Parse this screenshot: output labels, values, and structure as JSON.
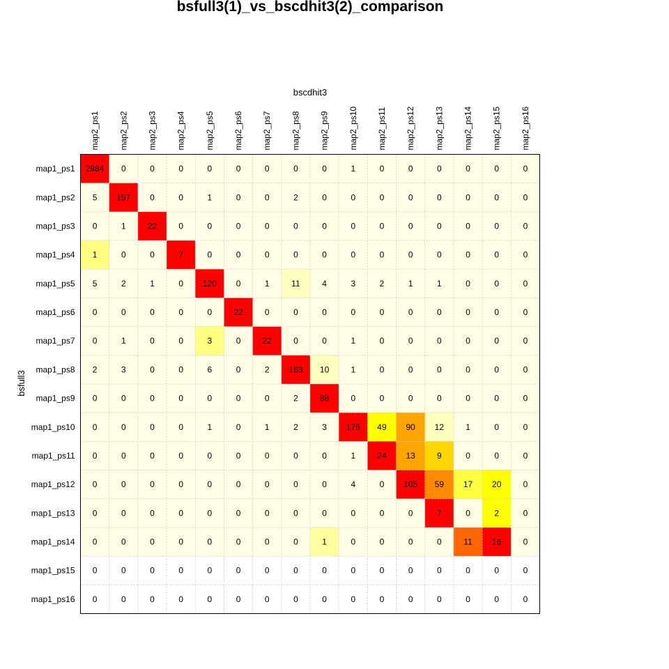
{
  "chart_data": {
    "type": "heatmap",
    "title": "bsfull3(1)_vs_bscdhit3(2)_comparison",
    "xlabel": "bscdhit3",
    "ylabel": "bsfull3",
    "x_categories": [
      "map2_ps1",
      "map2_ps2",
      "map2_ps3",
      "map2_ps4",
      "map2_ps5",
      "map2_ps6",
      "map2_ps7",
      "map2_ps8",
      "map2_ps9",
      "map2_ps10",
      "map2_ps11",
      "map2_ps12",
      "map2_ps13",
      "map2_ps14",
      "map2_ps15",
      "map2_ps16"
    ],
    "y_categories": [
      "map1_ps1",
      "map1_ps2",
      "map1_ps3",
      "map1_ps4",
      "map1_ps5",
      "map1_ps6",
      "map1_ps7",
      "map1_ps8",
      "map1_ps9",
      "map1_ps10",
      "map1_ps11",
      "map1_ps12",
      "map1_ps13",
      "map1_ps14",
      "map1_ps15",
      "map1_ps16"
    ],
    "values": [
      [
        2984,
        0,
        0,
        0,
        0,
        0,
        0,
        0,
        0,
        1,
        0,
        0,
        0,
        0,
        0,
        0
      ],
      [
        5,
        157,
        0,
        0,
        1,
        0,
        0,
        2,
        0,
        0,
        0,
        0,
        0,
        0,
        0,
        0
      ],
      [
        0,
        1,
        22,
        0,
        0,
        0,
        0,
        0,
        0,
        0,
        0,
        0,
        0,
        0,
        0,
        0
      ],
      [
        1,
        0,
        0,
        7,
        0,
        0,
        0,
        0,
        0,
        0,
        0,
        0,
        0,
        0,
        0,
        0
      ],
      [
        5,
        2,
        1,
        0,
        120,
        0,
        1,
        11,
        4,
        3,
        2,
        1,
        1,
        0,
        0,
        0
      ],
      [
        0,
        0,
        0,
        0,
        0,
        22,
        0,
        0,
        0,
        0,
        0,
        0,
        0,
        0,
        0,
        0
      ],
      [
        0,
        1,
        0,
        0,
        3,
        0,
        22,
        0,
        0,
        1,
        0,
        0,
        0,
        0,
        0,
        0
      ],
      [
        2,
        3,
        0,
        0,
        6,
        0,
        2,
        163,
        10,
        1,
        0,
        0,
        0,
        0,
        0,
        0
      ],
      [
        0,
        0,
        0,
        0,
        0,
        0,
        0,
        2,
        88,
        0,
        0,
        0,
        0,
        0,
        0,
        0
      ],
      [
        0,
        0,
        0,
        0,
        1,
        0,
        1,
        2,
        3,
        175,
        49,
        90,
        12,
        1,
        0,
        0
      ],
      [
        0,
        0,
        0,
        0,
        0,
        0,
        0,
        0,
        0,
        1,
        24,
        13,
        9,
        0,
        0,
        0
      ],
      [
        0,
        0,
        0,
        0,
        0,
        0,
        0,
        0,
        0,
        4,
        0,
        105,
        59,
        17,
        20,
        0
      ],
      [
        0,
        0,
        0,
        0,
        0,
        0,
        0,
        0,
        0,
        0,
        0,
        0,
        7,
        0,
        2,
        0
      ],
      [
        0,
        0,
        0,
        0,
        0,
        0,
        0,
        0,
        1,
        0,
        0,
        0,
        0,
        11,
        16,
        0
      ],
      [
        0,
        0,
        0,
        0,
        0,
        0,
        0,
        0,
        0,
        0,
        0,
        0,
        0,
        0,
        0,
        0
      ],
      [
        0,
        0,
        0,
        0,
        0,
        0,
        0,
        0,
        0,
        0,
        0,
        0,
        0,
        0,
        0,
        0
      ]
    ],
    "cell_colors": [
      [
        "#ff0000",
        "#fffde6",
        "#fffde6",
        "#fffde6",
        "#fffde6",
        "#fffde6",
        "#fffde6",
        "#fffde6",
        "#fffde6",
        "#fffde6",
        "#fffde6",
        "#fffde6",
        "#fffde6",
        "#fffde6",
        "#fffde6",
        "#fffde6"
      ],
      [
        "#fffde6",
        "#ff0000",
        "#fffde6",
        "#fffde6",
        "#fffde6",
        "#fffde6",
        "#fffde6",
        "#fffde6",
        "#fffde6",
        "#fffde6",
        "#fffde6",
        "#fffde6",
        "#fffde6",
        "#fffde6",
        "#fffde6",
        "#fffde6"
      ],
      [
        "#fffde6",
        "#fffde6",
        "#ff0000",
        "#fffde6",
        "#fffde6",
        "#fffde6",
        "#fffde6",
        "#fffde6",
        "#fffde6",
        "#fffde6",
        "#fffde6",
        "#fffde6",
        "#fffde6",
        "#fffde6",
        "#fffde6",
        "#fffde6"
      ],
      [
        "#ffff80",
        "#fffde6",
        "#fffde6",
        "#ff0000",
        "#fffde6",
        "#fffde6",
        "#fffde6",
        "#fffde6",
        "#fffde6",
        "#fffde6",
        "#fffde6",
        "#fffde6",
        "#fffde6",
        "#fffde6",
        "#fffde6",
        "#fffde6"
      ],
      [
        "#fffde6",
        "#fffde6",
        "#fffde6",
        "#fffde6",
        "#ff0000",
        "#fffde6",
        "#fffde6",
        "#ffffc0",
        "#fffde6",
        "#fffde6",
        "#fffde6",
        "#fffde6",
        "#fffde6",
        "#fffde6",
        "#fffde6",
        "#fffde6"
      ],
      [
        "#fffde6",
        "#fffde6",
        "#fffde6",
        "#fffde6",
        "#fffde6",
        "#ff0000",
        "#fffde6",
        "#fffde6",
        "#fffde6",
        "#fffde6",
        "#fffde6",
        "#fffde6",
        "#fffde6",
        "#fffde6",
        "#fffde6",
        "#fffde6"
      ],
      [
        "#fffde6",
        "#fffde6",
        "#fffde6",
        "#fffde6",
        "#ffff80",
        "#fffde6",
        "#ff0000",
        "#fffde6",
        "#fffde6",
        "#fffde6",
        "#fffde6",
        "#fffde6",
        "#fffde6",
        "#fffde6",
        "#fffde6",
        "#fffde6"
      ],
      [
        "#fffde6",
        "#fffde6",
        "#fffde6",
        "#fffde6",
        "#fffde6",
        "#fffde6",
        "#fffde6",
        "#ff0000",
        "#ffffc0",
        "#fffde6",
        "#fffde6",
        "#fffde6",
        "#fffde6",
        "#fffde6",
        "#fffde6",
        "#fffde6"
      ],
      [
        "#fffde6",
        "#fffde6",
        "#fffde6",
        "#fffde6",
        "#fffde6",
        "#fffde6",
        "#fffde6",
        "#fffde6",
        "#ff0000",
        "#fffde6",
        "#fffde6",
        "#fffde6",
        "#fffde6",
        "#fffde6",
        "#fffde6",
        "#fffde6"
      ],
      [
        "#fffde6",
        "#fffde6",
        "#fffde6",
        "#fffde6",
        "#fffde6",
        "#fffde6",
        "#fffde6",
        "#fffde6",
        "#fffde6",
        "#ff0000",
        "#ffff00",
        "#ffa500",
        "#ffffc0",
        "#fffde6",
        "#fffde6",
        "#fffde6"
      ],
      [
        "#fffde6",
        "#fffde6",
        "#fffde6",
        "#fffde6",
        "#fffde6",
        "#fffde6",
        "#fffde6",
        "#fffde6",
        "#fffde6",
        "#fffde6",
        "#ff0000",
        "#ffa500",
        "#ffd700",
        "#fffde6",
        "#fffde6",
        "#fffde6"
      ],
      [
        "#fffde6",
        "#fffde6",
        "#fffde6",
        "#fffde6",
        "#fffde6",
        "#fffde6",
        "#fffde6",
        "#fffde6",
        "#fffde6",
        "#fffde6",
        "#fffde6",
        "#ff0000",
        "#ff8c00",
        "#ffff40",
        "#ffff00",
        "#fffde6"
      ],
      [
        "#fffde6",
        "#fffde6",
        "#fffde6",
        "#fffde6",
        "#fffde6",
        "#fffde6",
        "#fffde6",
        "#fffde6",
        "#fffde6",
        "#fffde6",
        "#fffde6",
        "#fffde6",
        "#ff0000",
        "#fffde6",
        "#ffff00",
        "#fffde6"
      ],
      [
        "#fffde6",
        "#fffde6",
        "#fffde6",
        "#fffde6",
        "#fffde6",
        "#fffde6",
        "#fffde6",
        "#fffde6",
        "#ffffa0",
        "#fffde6",
        "#fffde6",
        "#fffde6",
        "#fffde6",
        "#ff6600",
        "#ff0000",
        "#fffde6"
      ],
      [
        "#ffffff",
        "#ffffff",
        "#ffffff",
        "#ffffff",
        "#ffffff",
        "#ffffff",
        "#ffffff",
        "#ffffff",
        "#ffffff",
        "#ffffff",
        "#ffffff",
        "#ffffff",
        "#ffffff",
        "#ffffff",
        "#ffffff",
        "#ffffff"
      ],
      [
        "#ffffff",
        "#ffffff",
        "#ffffff",
        "#ffffff",
        "#ffffff",
        "#ffffff",
        "#ffffff",
        "#ffffff",
        "#ffffff",
        "#ffffff",
        "#ffffff",
        "#ffffff",
        "#ffffff",
        "#ffffff",
        "#ffffff",
        "#ffffff"
      ]
    ],
    "grid": true,
    "colors": {
      "background": "#ffffff",
      "border": "#000000",
      "grid": "#c9c9c9"
    }
  }
}
